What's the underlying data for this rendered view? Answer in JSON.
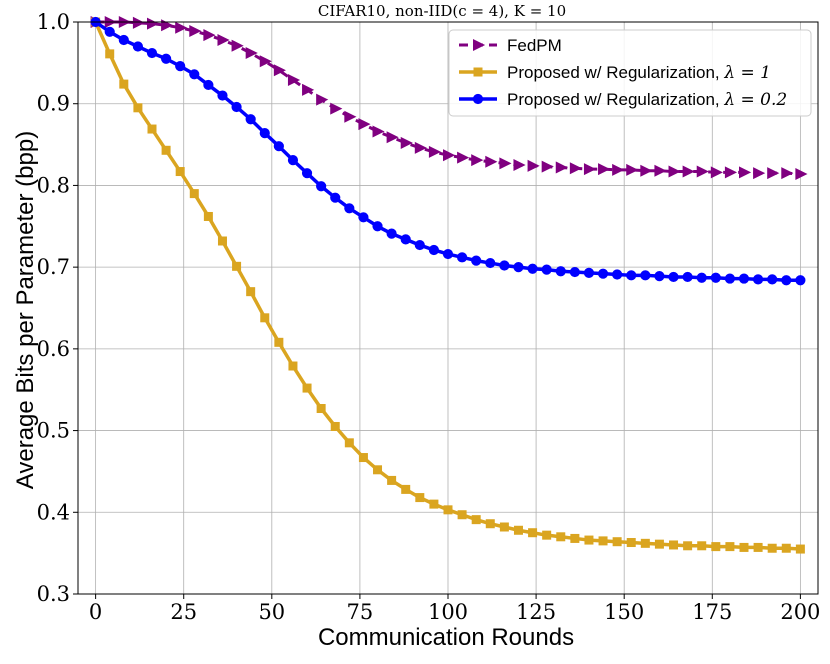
{
  "chart_data": {
    "type": "line",
    "title": "CIFAR10, non-IID(c = 4), K = 10",
    "xlabel": "Communication Rounds",
    "ylabel": "Average Bits per Parameter (bpp)",
    "xlim": [
      -5,
      205
    ],
    "ylim": [
      0.3,
      1.0
    ],
    "xticks": [
      0,
      25,
      50,
      75,
      100,
      125,
      150,
      175,
      200
    ],
    "yticks": [
      0.3,
      0.4,
      0.5,
      0.6,
      0.7,
      0.8,
      0.9,
      1.0
    ],
    "ytick_labels": [
      "0.3",
      "0.4",
      "0.5",
      "0.6",
      "0.7",
      "0.8",
      "0.9",
      "1.0"
    ],
    "grid": true,
    "legend_position": "top-right",
    "x": [
      0,
      4,
      8,
      12,
      16,
      20,
      24,
      28,
      32,
      36,
      40,
      44,
      48,
      52,
      56,
      60,
      64,
      68,
      72,
      76,
      80,
      84,
      88,
      92,
      96,
      100,
      104,
      108,
      112,
      116,
      120,
      124,
      128,
      132,
      136,
      140,
      144,
      148,
      152,
      156,
      160,
      164,
      168,
      172,
      176,
      180,
      184,
      188,
      192,
      196,
      200
    ],
    "series": [
      {
        "name": "FedPM",
        "legend_prefix": "FedPM",
        "legend_math": "",
        "color": "#800080",
        "marker": "triangle-right",
        "values": [
          1.0,
          1.0,
          1.0,
          0.999,
          0.998,
          0.996,
          0.993,
          0.989,
          0.984,
          0.978,
          0.971,
          0.962,
          0.952,
          0.941,
          0.929,
          0.917,
          0.905,
          0.894,
          0.884,
          0.875,
          0.866,
          0.859,
          0.852,
          0.846,
          0.841,
          0.837,
          0.834,
          0.831,
          0.829,
          0.827,
          0.825,
          0.824,
          0.823,
          0.822,
          0.821,
          0.82,
          0.82,
          0.819,
          0.819,
          0.818,
          0.818,
          0.817,
          0.817,
          0.817,
          0.816,
          0.816,
          0.816,
          0.815,
          0.815,
          0.815,
          0.814
        ]
      },
      {
        "name": "Proposed w/ Regularization, λ = 1",
        "legend_prefix": "Proposed w/ Regularization, ",
        "legend_math": "λ = 1",
        "color": "#DAA520",
        "marker": "square",
        "values": [
          1.0,
          0.961,
          0.924,
          0.895,
          0.869,
          0.843,
          0.817,
          0.79,
          0.762,
          0.732,
          0.701,
          0.67,
          0.638,
          0.608,
          0.579,
          0.552,
          0.527,
          0.505,
          0.485,
          0.467,
          0.452,
          0.439,
          0.428,
          0.418,
          0.41,
          0.403,
          0.397,
          0.391,
          0.386,
          0.382,
          0.378,
          0.375,
          0.372,
          0.37,
          0.368,
          0.366,
          0.365,
          0.364,
          0.363,
          0.362,
          0.361,
          0.36,
          0.359,
          0.359,
          0.358,
          0.358,
          0.357,
          0.357,
          0.356,
          0.356,
          0.355
        ]
      },
      {
        "name": "Proposed w/ Regularization, λ = 0.2",
        "legend_prefix": "Proposed w/ Regularization, ",
        "legend_math": "λ = 0.2",
        "color": "#0000FF",
        "marker": "circle",
        "values": [
          1.0,
          0.988,
          0.978,
          0.97,
          0.962,
          0.955,
          0.946,
          0.936,
          0.923,
          0.91,
          0.896,
          0.881,
          0.864,
          0.848,
          0.831,
          0.815,
          0.799,
          0.785,
          0.772,
          0.761,
          0.75,
          0.741,
          0.734,
          0.727,
          0.721,
          0.716,
          0.712,
          0.708,
          0.705,
          0.702,
          0.7,
          0.698,
          0.697,
          0.695,
          0.694,
          0.693,
          0.692,
          0.691,
          0.69,
          0.69,
          0.689,
          0.688,
          0.688,
          0.687,
          0.687,
          0.686,
          0.686,
          0.685,
          0.685,
          0.684,
          0.684
        ]
      }
    ]
  }
}
